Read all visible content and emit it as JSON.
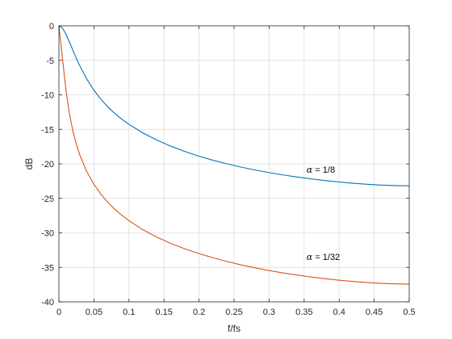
{
  "chart_data": {
    "type": "line",
    "title": "",
    "xlabel": "f/fs",
    "ylabel": "dB",
    "xlim": [
      0,
      0.5
    ],
    "ylim": [
      -40,
      0
    ],
    "xticks": [
      0,
      0.05,
      0.1,
      0.15,
      0.2,
      0.25,
      0.3,
      0.35,
      0.4,
      0.45,
      0.5
    ],
    "xtick_labels": [
      "0",
      "0.05",
      "0.1",
      "0.15",
      "0.2",
      "0.25",
      "0.3",
      "0.35",
      "0.4",
      "0.45",
      "0.5"
    ],
    "yticks": [
      0,
      -5,
      -10,
      -15,
      -20,
      -25,
      -30,
      -35,
      -40
    ],
    "ytick_labels": [
      "0",
      "-5",
      "-10",
      "-15",
      "-20",
      "-25",
      "-30",
      "-35",
      "-40"
    ],
    "grid": true,
    "legend": false,
    "x": [
      0,
      0.005,
      0.01,
      0.015,
      0.02,
      0.025,
      0.03,
      0.04,
      0.05,
      0.06,
      0.07,
      0.08,
      0.09,
      0.1,
      0.12,
      0.14,
      0.16,
      0.18,
      0.2,
      0.22,
      0.24,
      0.26,
      0.28,
      0.3,
      0.32,
      0.34,
      0.36,
      0.38,
      0.4,
      0.42,
      0.44,
      0.46,
      0.48,
      0.5
    ],
    "series": [
      {
        "name": "",
        "color": "#0072BD",
        "values": [
          0,
          -0.33,
          -1.2,
          -2.34,
          -3.56,
          -4.74,
          -5.84,
          -7.76,
          -9.34,
          -10.65,
          -11.76,
          -12.71,
          -13.54,
          -14.28,
          -15.53,
          -16.57,
          -17.45,
          -18.22,
          -18.89,
          -19.48,
          -20.0,
          -20.47,
          -20.89,
          -21.27,
          -21.61,
          -21.91,
          -22.18,
          -22.42,
          -22.63,
          -22.81,
          -22.96,
          -23.08,
          -23.15,
          -23.18
        ]
      },
      {
        "name": "",
        "color": "#D95319",
        "values": [
          0,
          -4.65,
          -9.3,
          -12.74,
          -15.27,
          -17.21,
          -18.77,
          -21.17,
          -22.98,
          -24.41,
          -25.6,
          -26.6,
          -27.47,
          -28.24,
          -29.55,
          -30.63,
          -31.54,
          -32.32,
          -33.0,
          -33.61,
          -34.15,
          -34.64,
          -35.07,
          -35.46,
          -35.81,
          -36.12,
          -36.4,
          -36.64,
          -36.86,
          -37.04,
          -37.2,
          -37.32,
          -37.39,
          -37.43
        ]
      }
    ],
    "annotations": [
      {
        "x": 0.35,
        "y": -21.3,
        "greek": "α",
        "text": " = 1/8"
      },
      {
        "x": 0.35,
        "y": -33.9,
        "greek": "α",
        "text": " = 1/32"
      }
    ]
  }
}
